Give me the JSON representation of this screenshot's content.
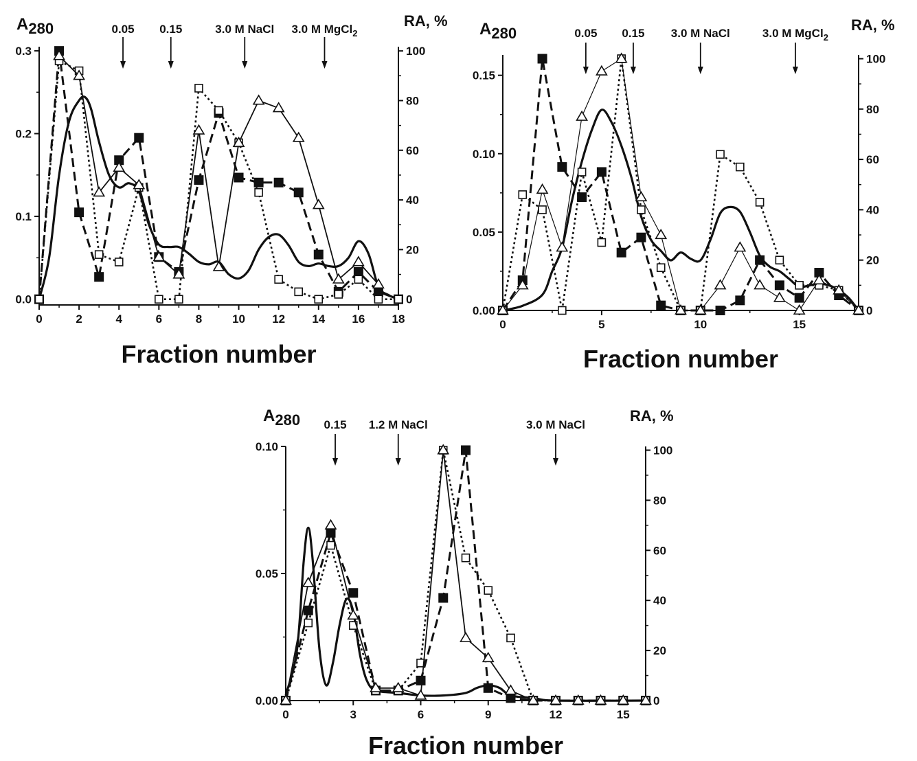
{
  "chart_data": [
    {
      "type": "line",
      "ylabel": "A",
      "ylabel_sub": "280",
      "y2label": "RA, %",
      "xlabel": "Fraction number",
      "xlim": [
        0,
        18
      ],
      "ylim": [
        -0.007,
        0.305
      ],
      "y2lim": [
        -2.3,
        101.7
      ],
      "xticks": [
        "0",
        "2",
        "4",
        "6",
        "8",
        "10",
        "12",
        "14",
        "16",
        "18"
      ],
      "yticks": [
        "0.0",
        "0.1",
        "0.2",
        "0.3"
      ],
      "y2ticks": [
        "0",
        "20",
        "40",
        "60",
        "80",
        "100"
      ],
      "annotations": [
        {
          "x": 4.2,
          "label": "0.05",
          "label_sub": ""
        },
        {
          "x": 6.6,
          "label": "0.15",
          "label_sub": ""
        },
        {
          "x": 10.3,
          "label": "3.0 M NaCl",
          "label_sub": ""
        },
        {
          "x": 14.3,
          "label": "3.0 M MgCl",
          "label_sub": "2"
        }
      ],
      "series": [
        {
          "axis": "left",
          "style": "solid-thick",
          "marker": "none",
          "x": [
            0,
            0.5,
            1,
            1.5,
            2,
            2.3,
            2.6,
            3,
            3.5,
            4,
            4.5,
            5,
            5.5,
            6,
            6.5,
            7,
            7.5,
            8,
            8.5,
            9,
            9.5,
            10,
            10.5,
            11,
            11.5,
            12,
            12.5,
            13,
            13.5,
            14,
            14.5,
            15,
            15.5,
            16,
            16.5,
            17,
            17.5,
            18
          ],
          "y": [
            0,
            0.05,
            0.15,
            0.215,
            0.24,
            0.244,
            0.23,
            0.19,
            0.15,
            0.135,
            0.14,
            0.13,
            0.09,
            0.066,
            0.063,
            0.063,
            0.055,
            0.045,
            0.042,
            0.045,
            0.03,
            0.025,
            0.035,
            0.06,
            0.075,
            0.078,
            0.065,
            0.045,
            0.04,
            0.043,
            0.04,
            0.04,
            0.05,
            0.07,
            0.055,
            0.015,
            0.005,
            0
          ]
        },
        {
          "axis": "right",
          "style": "dashed",
          "marker": "filled-square",
          "x": [
            0,
            1,
            2,
            3,
            4,
            5,
            6,
            7,
            8,
            9,
            10,
            11,
            12,
            13,
            14,
            15,
            16,
            17,
            18
          ],
          "y": [
            0,
            100,
            35,
            9,
            56,
            65,
            17,
            11,
            48,
            75,
            49,
            47,
            47,
            43,
            18,
            3,
            11,
            3,
            0
          ]
        },
        {
          "axis": "right",
          "style": "dotted",
          "marker": "open-square",
          "x": [
            0,
            1,
            2,
            3,
            4,
            5,
            6,
            7,
            8,
            9,
            10,
            11,
            12,
            13,
            14,
            15,
            16,
            17,
            18
          ],
          "y": [
            0,
            96,
            92,
            18,
            15,
            45,
            0,
            0,
            85,
            76,
            63,
            43,
            8,
            3,
            0,
            2,
            8,
            0,
            0
          ]
        },
        {
          "axis": "right",
          "style": "solid",
          "marker": "open-triangle",
          "x": [
            1,
            2,
            3,
            4,
            5,
            6,
            7,
            8,
            9,
            10,
            11,
            12,
            13,
            14,
            15,
            16,
            17
          ],
          "y": [
            98,
            90,
            43,
            53,
            46,
            17,
            10,
            68,
            13,
            63,
            80,
            77,
            65,
            38,
            8,
            15,
            6
          ]
        }
      ]
    },
    {
      "type": "line",
      "ylabel": "A",
      "ylabel_sub": "280",
      "y2label": "RA, %",
      "xlabel": "Fraction number",
      "xlim": [
        0,
        18
      ],
      "ylim": [
        0,
        0.163
      ],
      "y2lim": [
        0,
        101.5
      ],
      "xticks": [
        "0",
        "5",
        "10",
        "15"
      ],
      "yticks": [
        "0.00",
        "0.05",
        "0.10",
        "0.15"
      ],
      "y2ticks": [
        "0",
        "20",
        "40",
        "60",
        "80",
        "100"
      ],
      "annotations": [
        {
          "x": 4.2,
          "label": "0.05",
          "label_sub": ""
        },
        {
          "x": 6.6,
          "label": "0.15",
          "label_sub": ""
        },
        {
          "x": 10,
          "label": "3.0 M NaCl",
          "label_sub": ""
        },
        {
          "x": 14.8,
          "label": "3.0 M MgCl",
          "label_sub": "2"
        }
      ],
      "series": [
        {
          "axis": "left",
          "style": "solid-thick",
          "marker": "none",
          "x": [
            0,
            1,
            2,
            2.5,
            3,
            3.5,
            4,
            4.5,
            5,
            5.5,
            6,
            6.5,
            7,
            7.5,
            8,
            8.5,
            9,
            9.5,
            10,
            10.5,
            11,
            11.5,
            12,
            12.5,
            13,
            13.5,
            14,
            14.5,
            15,
            15.5,
            16,
            16.5,
            17,
            17.5,
            18
          ],
          "y": [
            0,
            0.003,
            0.01,
            0.025,
            0.04,
            0.07,
            0.095,
            0.115,
            0.128,
            0.12,
            0.105,
            0.085,
            0.06,
            0.045,
            0.038,
            0.032,
            0.037,
            0.033,
            0.032,
            0.045,
            0.062,
            0.066,
            0.063,
            0.05,
            0.035,
            0.028,
            0.025,
            0.02,
            0.015,
            0.016,
            0.017,
            0.016,
            0.013,
            0.008,
            0
          ]
        },
        {
          "axis": "right",
          "style": "dashed",
          "marker": "filled-square",
          "x": [
            0,
            1,
            2,
            3,
            4,
            5,
            6,
            7,
            8,
            9,
            10,
            11,
            12,
            13,
            14,
            15,
            16,
            17,
            18
          ],
          "y": [
            0,
            12,
            100,
            57,
            45,
            55,
            23,
            29,
            2,
            0,
            0,
            0,
            4,
            20,
            10,
            5,
            15,
            6,
            0
          ]
        },
        {
          "axis": "right",
          "style": "dotted",
          "marker": "open-square",
          "x": [
            0,
            1,
            2,
            3,
            4,
            5,
            6,
            7,
            8,
            9,
            10,
            11,
            12,
            13,
            14,
            15,
            16,
            17,
            18
          ],
          "y": [
            0,
            46,
            40,
            0,
            55,
            27,
            100,
            40,
            17,
            0,
            0,
            62,
            57,
            43,
            20,
            10,
            10,
            8,
            0
          ]
        },
        {
          "axis": "right",
          "style": "solid-thin",
          "marker": "open-triangle",
          "x": [
            0,
            1,
            2,
            3,
            4,
            5,
            6,
            7,
            8,
            9,
            10,
            11,
            12,
            13,
            14,
            15,
            16,
            17,
            18
          ],
          "y": [
            0,
            10,
            48,
            25,
            77,
            95,
            100,
            45,
            30,
            0,
            0,
            10,
            25,
            10,
            5,
            0,
            12,
            8,
            0
          ]
        }
      ]
    },
    {
      "type": "line",
      "ylabel": "A",
      "ylabel_sub": "280",
      "y2label": "RA, %",
      "xlabel": "Fraction number",
      "xlim": [
        0,
        16
      ],
      "ylim": [
        0,
        0.1
      ],
      "y2lim": [
        0,
        101.5
      ],
      "xticks": [
        "0",
        "3",
        "6",
        "9",
        "12",
        "15"
      ],
      "yticks": [
        "0.00",
        "0.05",
        "0.10"
      ],
      "y2ticks": [
        "0",
        "20",
        "40",
        "60",
        "80",
        "100"
      ],
      "annotations": [
        {
          "x": 2.2,
          "label": "0.15",
          "label_sub": ""
        },
        {
          "x": 5,
          "label": "1.2 M NaCl",
          "label_sub": ""
        },
        {
          "x": 12,
          "label": "3.0 M NaCl",
          "label_sub": ""
        }
      ],
      "series": [
        {
          "axis": "left",
          "style": "solid-thick",
          "marker": "none",
          "x": [
            0,
            0.5,
            0.8,
            1,
            1.2,
            1.5,
            1.8,
            2.1,
            2.4,
            2.7,
            3,
            3.3,
            3.6,
            4,
            5,
            6,
            7,
            8,
            8.5,
            9,
            9.5,
            10,
            11,
            12,
            16
          ],
          "y": [
            0.002,
            0.02,
            0.055,
            0.068,
            0.055,
            0.02,
            0.006,
            0.015,
            0.03,
            0.04,
            0.035,
            0.018,
            0.008,
            0.004,
            0.003,
            0.002,
            0.002,
            0.003,
            0.005,
            0.006,
            0.005,
            0.002,
            0.001,
            0,
            0
          ]
        },
        {
          "axis": "right",
          "style": "dashed",
          "marker": "filled-square",
          "x": [
            0,
            1,
            2,
            3,
            4,
            5,
            6,
            7,
            8,
            9,
            10,
            11,
            12,
            13,
            14,
            15,
            16
          ],
          "y": [
            0,
            36,
            67,
            43,
            4,
            4,
            8,
            41,
            100,
            5,
            1,
            0,
            0,
            0,
            0,
            0,
            0
          ]
        },
        {
          "axis": "right",
          "style": "dotted",
          "marker": "open-square",
          "x": [
            0,
            1,
            2,
            3,
            4,
            5,
            6,
            7,
            8,
            9,
            10,
            11,
            12,
            13,
            14,
            15,
            16
          ],
          "y": [
            0,
            31,
            62,
            30,
            4,
            4,
            15,
            100,
            57,
            44,
            25,
            0,
            0,
            0,
            0,
            0,
            0
          ]
        },
        {
          "axis": "right",
          "style": "solid",
          "marker": "open-triangle",
          "x": [
            0,
            1,
            2,
            3,
            4,
            5,
            6,
            7,
            8,
            9,
            10,
            11,
            12,
            13,
            14,
            15,
            16
          ],
          "y": [
            0,
            47,
            70,
            34,
            5,
            5,
            2,
            100,
            25,
            17,
            4,
            0,
            0,
            0,
            0,
            0,
            0
          ]
        }
      ]
    }
  ]
}
